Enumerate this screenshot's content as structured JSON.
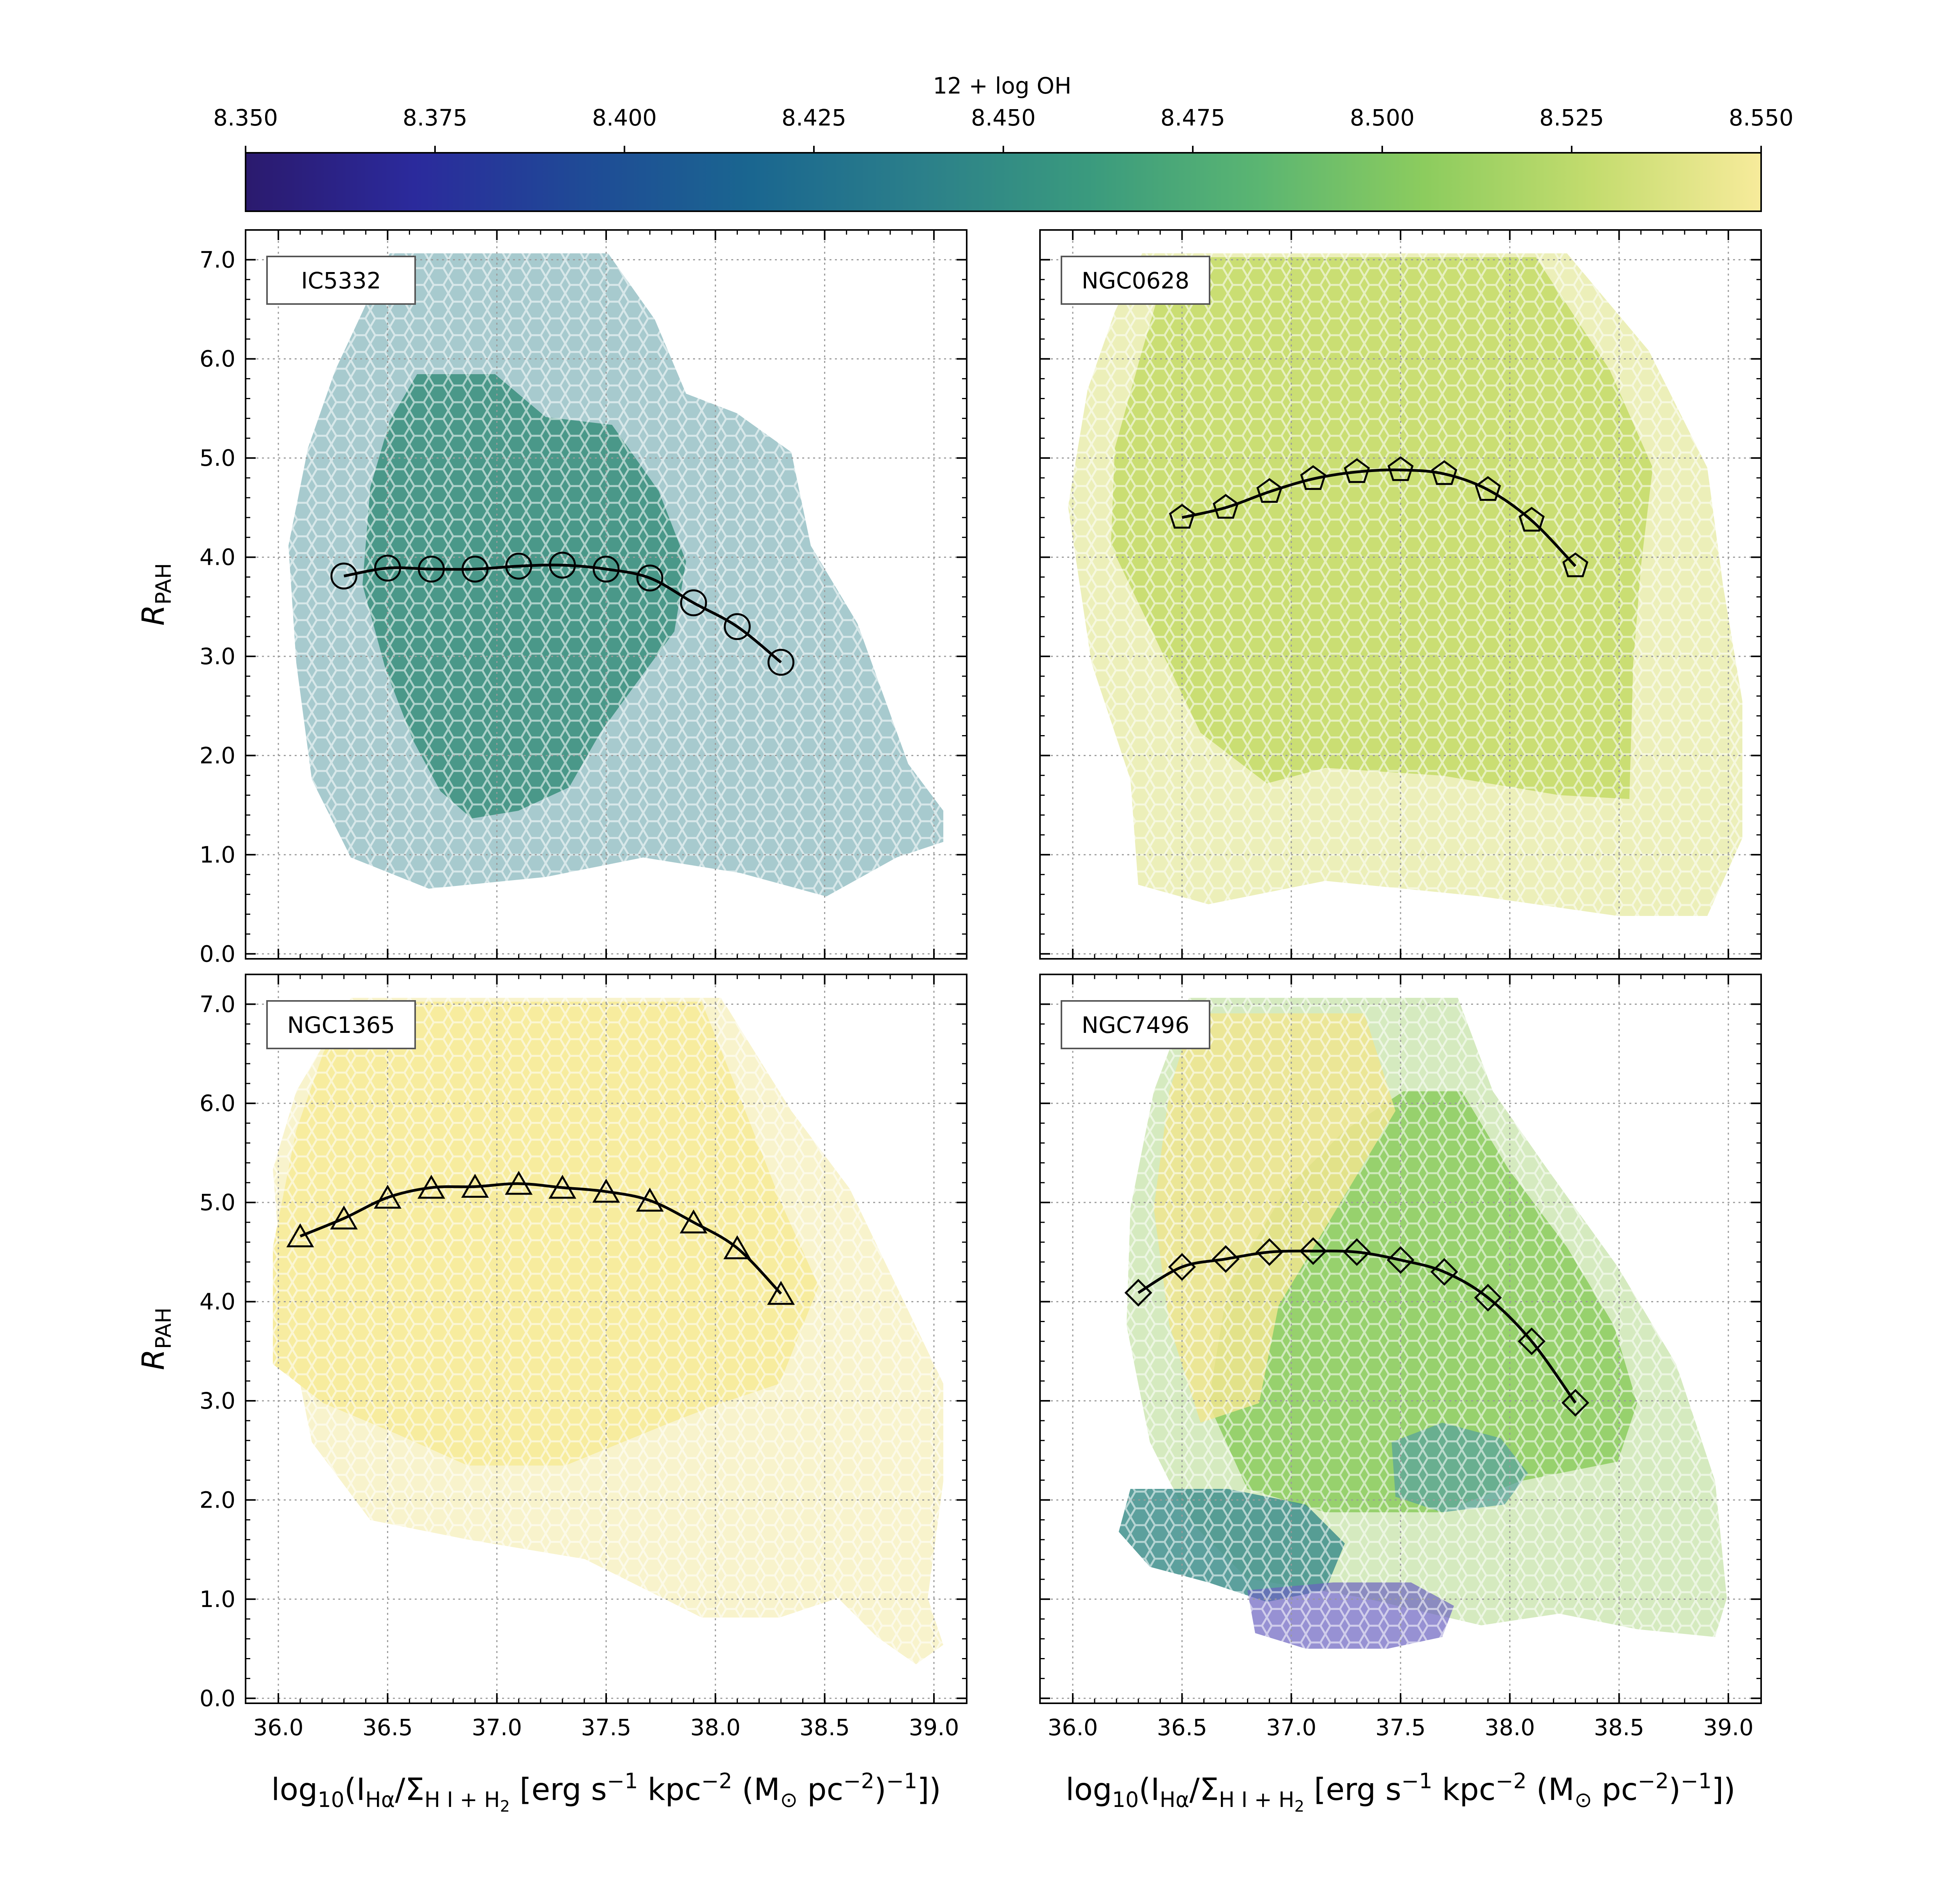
{
  "colorbar": {
    "label": "12 + log OH",
    "ticks": [
      "8.350",
      "8.375",
      "8.400",
      "8.425",
      "8.450",
      "8.475",
      "8.500",
      "8.525",
      "8.550"
    ],
    "vmin": 8.35,
    "vmax": 8.55,
    "colormap": [
      "#2b1a6e",
      "#2b2a9c",
      "#1f4a96",
      "#1a6690",
      "#2b7f8a",
      "#3a9a7e",
      "#5ab572",
      "#8ccc5e",
      "#c4dc6e",
      "#f7eb9b"
    ]
  },
  "axes_text": {
    "ylabel_main": "R",
    "ylabel_sub": "PAH",
    "xlabel": {
      "p1": "log",
      "s1": "10",
      "p2": "(I",
      "s2": "Hα",
      "p3": "/Σ",
      "s3": "H I + H",
      "s4": "2",
      "p4": " [erg s",
      "e1": "−1",
      "p5": " kpc",
      "e2": "−2",
      "p6": " (M",
      "s5": "⊙",
      "p7": " pc",
      "e3": "−2",
      "p8": ")",
      "e4": "−1",
      "p9": "])"
    }
  },
  "chart_data": [
    {
      "type": "scatter",
      "panel": "IC5332",
      "marker": "circle",
      "x": [
        36.3,
        36.5,
        36.7,
        36.9,
        37.1,
        37.3,
        37.5,
        37.7,
        37.9,
        38.1,
        38.3
      ],
      "y": [
        3.81,
        3.89,
        3.88,
        3.88,
        3.91,
        3.92,
        3.88,
        3.79,
        3.54,
        3.3,
        2.94
      ],
      "xlim": [
        35.85,
        39.15
      ],
      "ylim": [
        -0.05,
        7.3
      ],
      "xticks": [
        "36.0",
        "36.5",
        "37.0",
        "37.5",
        "38.0",
        "38.5",
        "39.0"
      ],
      "yticks": [
        "0.0",
        "1.0",
        "2.0",
        "3.0",
        "4.0",
        "5.0",
        "6.0",
        "7.0"
      ],
      "grid": true,
      "background_metallicity": "8.45 outer / 8.47 inner"
    },
    {
      "type": "scatter",
      "panel": "NGC0628",
      "marker": "pentagon",
      "x": [
        36.5,
        36.7,
        36.9,
        37.1,
        37.3,
        37.5,
        37.7,
        37.9,
        38.1,
        38.3
      ],
      "y": [
        4.4,
        4.5,
        4.66,
        4.79,
        4.86,
        4.88,
        4.84,
        4.68,
        4.37,
        3.91
      ],
      "xlim": [
        35.85,
        39.15
      ],
      "ylim": [
        -0.05,
        7.3
      ],
      "xticks": [
        "36.0",
        "36.5",
        "37.0",
        "37.5",
        "38.0",
        "38.5",
        "39.0"
      ],
      "yticks": [
        "0.0",
        "1.0",
        "2.0",
        "3.0",
        "4.0",
        "5.0",
        "6.0",
        "7.0"
      ],
      "grid": true,
      "background_metallicity": "8.52"
    },
    {
      "type": "scatter",
      "panel": "NGC1365",
      "marker": "triangle",
      "x": [
        36.1,
        36.3,
        36.5,
        36.7,
        36.9,
        37.1,
        37.3,
        37.5,
        37.7,
        37.9,
        38.1,
        38.3
      ],
      "y": [
        4.66,
        4.84,
        5.05,
        5.15,
        5.16,
        5.19,
        5.15,
        5.11,
        5.02,
        4.8,
        4.54,
        4.08
      ],
      "xlim": [
        35.85,
        39.15
      ],
      "ylim": [
        -0.05,
        7.3
      ],
      "xticks": [
        "36.0",
        "36.5",
        "37.0",
        "37.5",
        "38.0",
        "38.5",
        "39.0"
      ],
      "yticks": [
        "0.0",
        "1.0",
        "2.0",
        "3.0",
        "4.0",
        "5.0",
        "6.0",
        "7.0"
      ],
      "grid": true,
      "background_metallicity": "8.55"
    },
    {
      "type": "scatter",
      "panel": "NGC7496",
      "marker": "diamond",
      "x": [
        36.3,
        36.5,
        36.7,
        36.9,
        37.1,
        37.3,
        37.5,
        37.7,
        37.9,
        38.1,
        38.3
      ],
      "y": [
        4.09,
        4.35,
        4.43,
        4.5,
        4.51,
        4.5,
        4.42,
        4.3,
        4.04,
        3.6,
        2.98
      ],
      "xlim": [
        35.85,
        39.15
      ],
      "ylim": [
        -0.05,
        7.3
      ],
      "xticks": [
        "36.0",
        "36.5",
        "37.0",
        "37.5",
        "38.0",
        "38.5",
        "39.0"
      ],
      "yticks": [
        "0.0",
        "1.0",
        "2.0",
        "3.0",
        "4.0",
        "5.0",
        "6.0",
        "7.0"
      ],
      "grid": true,
      "background_metallicity": "8.38 to 8.55"
    }
  ]
}
